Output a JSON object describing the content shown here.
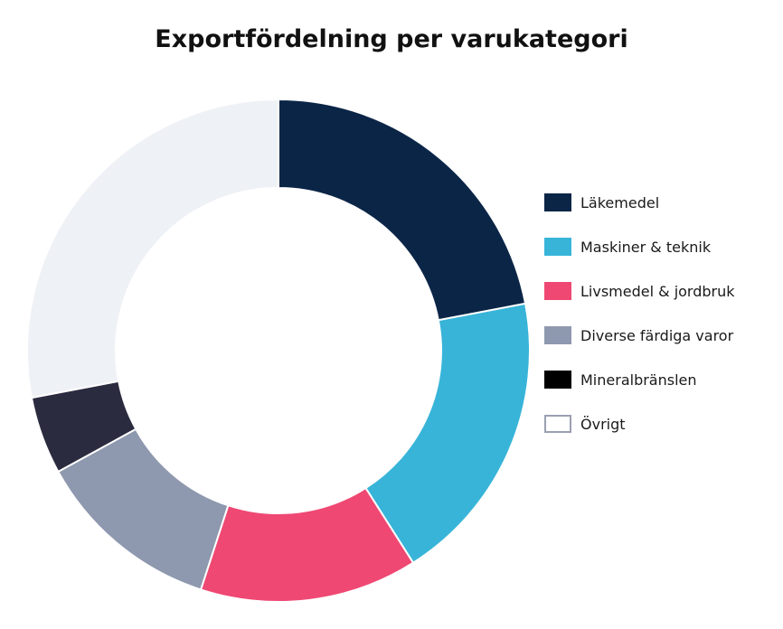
{
  "chart_data": {
    "type": "pie",
    "title": "Exportfördelning per varukategori",
    "legend_position": "right",
    "categories": [
      "Läkemedel",
      "Maskiner & teknik",
      "Livsmedel & jordbruk",
      "Diverse färdiga varor",
      "Mineralbränslen",
      "Övrigt"
    ],
    "values": [
      22,
      19,
      14,
      12,
      5,
      28
    ],
    "colors": [
      "#0b2547",
      "#38b4d8",
      "#ef4873",
      "#8e98ae",
      "#2b2b40",
      "#eef1f5"
    ],
    "legend_swatch_colors": [
      "#0b2547",
      "#38b4d8",
      "#ef4873",
      "#8e98ae",
      "#000000",
      "#ffffff"
    ]
  }
}
